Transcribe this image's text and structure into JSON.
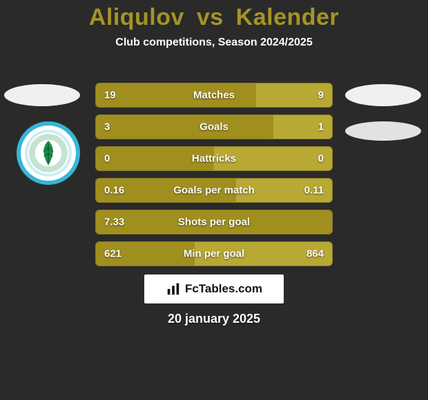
{
  "background_color": "#2a2a2a",
  "title": {
    "player1": "Aliqulov",
    "vs": "vs",
    "player2": "Kalender",
    "color": "#a59425",
    "fontsize": 34
  },
  "subtitle": {
    "text": "Club competitions, Season 2024/2025",
    "fontsize": 16
  },
  "club_logo": {
    "ring_color": "#36b6d6",
    "leaf_color": "#1d8f4a",
    "year": "1953",
    "text": "ÇAYKUR RİZESPOR KULÜBÜ"
  },
  "bars": {
    "left_color": "#a08f1f",
    "right_color": "#b8a834",
    "track_color": "#6d621a",
    "track_border": "#8a7d22",
    "rows": [
      {
        "label": "Matches",
        "left": "19",
        "right": "9",
        "left_pct": 67.9,
        "right_pct": 32.1
      },
      {
        "label": "Goals",
        "left": "3",
        "right": "1",
        "left_pct": 75.0,
        "right_pct": 25.0
      },
      {
        "label": "Hattricks",
        "left": "0",
        "right": "0",
        "left_pct": 50.0,
        "right_pct": 50.0
      },
      {
        "label": "Goals per match",
        "left": "0.16",
        "right": "0.11",
        "left_pct": 59.3,
        "right_pct": 40.7
      },
      {
        "label": "Shots per goal",
        "left": "7.33",
        "right": "",
        "left_pct": 100.0,
        "right_pct": 0.0
      },
      {
        "label": "Min per goal",
        "left": "621",
        "right": "864",
        "left_pct": 41.8,
        "right_pct": 58.2
      }
    ]
  },
  "brand": {
    "text": "FcTables.com",
    "icon_color": "#111111"
  },
  "footer_date": "20 january 2025"
}
